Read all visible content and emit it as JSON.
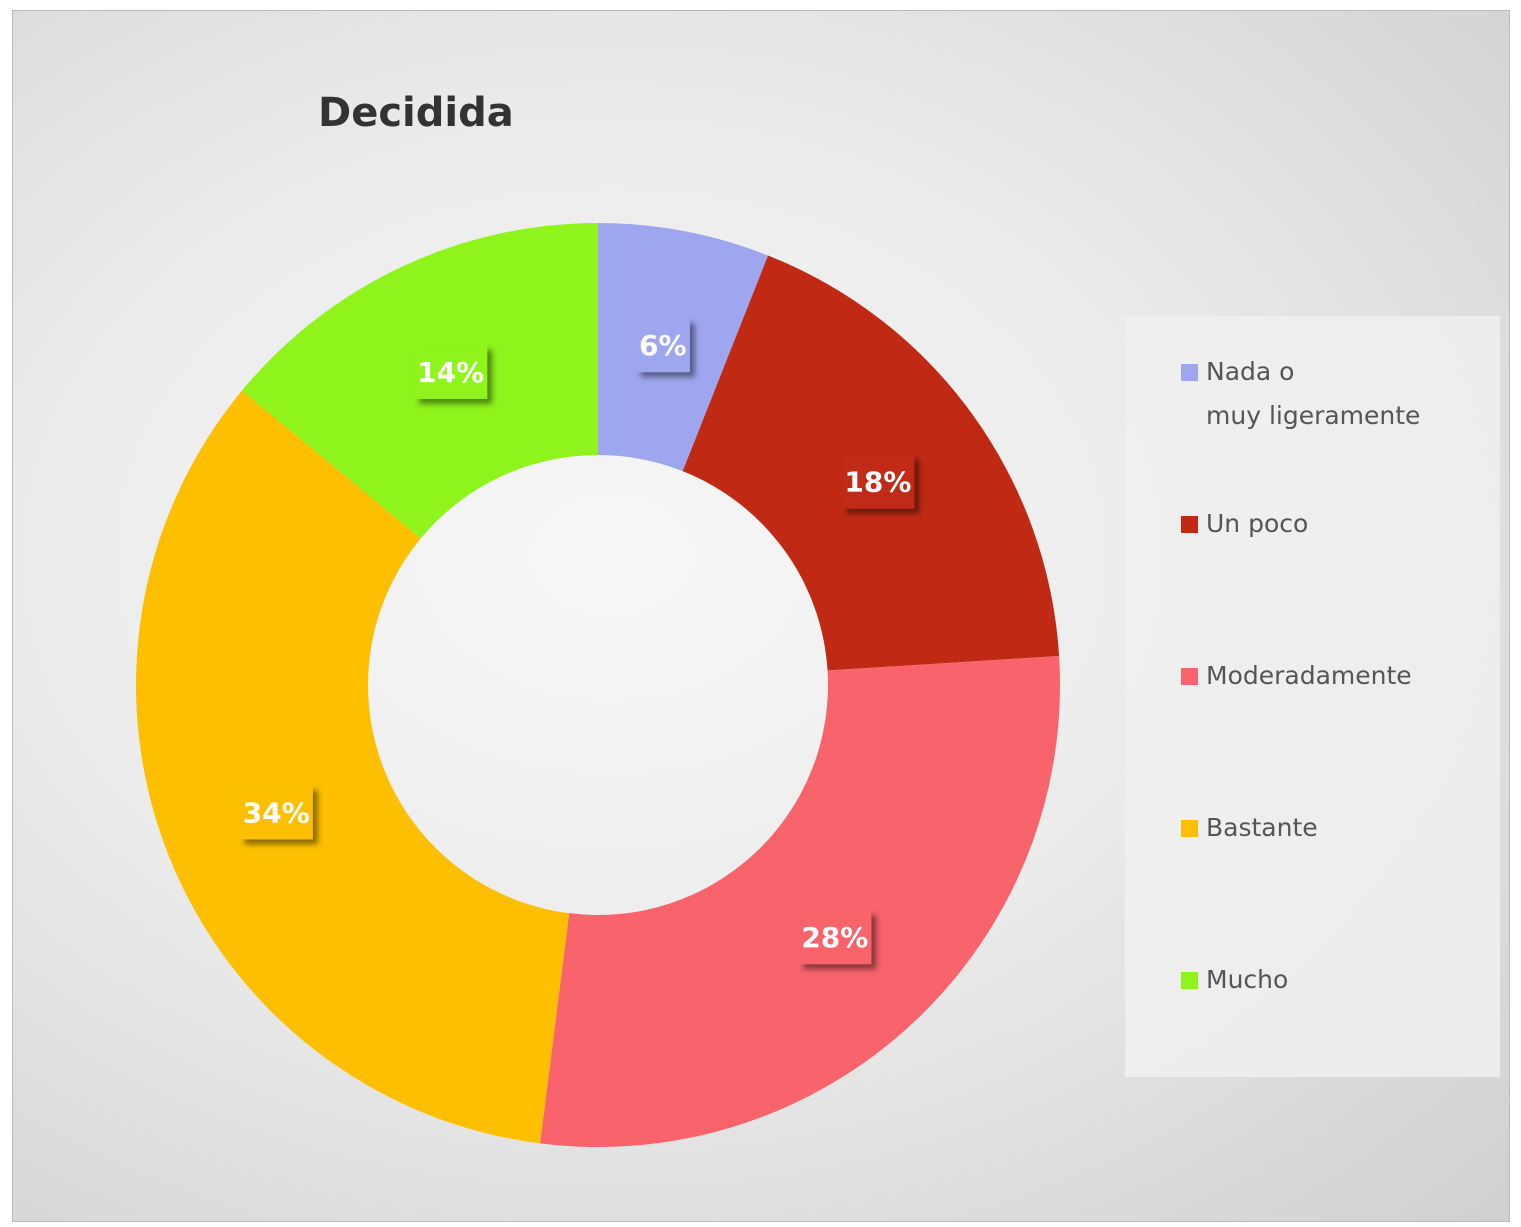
{
  "chart_data": {
    "type": "donut",
    "title": "Decidida",
    "categories": [
      "Nada o\nmuy ligeramente",
      "Un poco",
      "Moderadamente",
      "Bastante",
      "Mucho"
    ],
    "values": [
      6,
      18,
      28,
      34,
      14
    ],
    "value_labels": [
      "6%",
      "18%",
      "28%",
      "34%",
      "14%"
    ],
    "colors": [
      "#9ea6f0",
      "#c02a14",
      "#f9636b",
      "#fdbf00",
      "#8ef41c"
    ],
    "legend": "right"
  }
}
